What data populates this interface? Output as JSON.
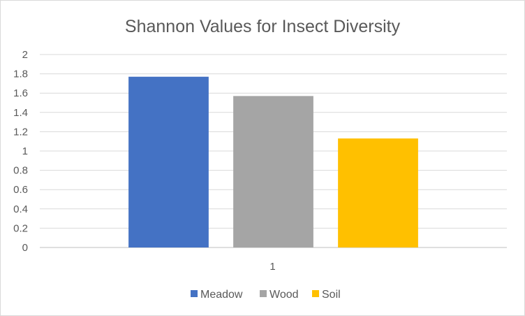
{
  "chart_data": {
    "type": "bar",
    "title": "Shannon Values for Insect Diversity",
    "categories": [
      "1"
    ],
    "series": [
      {
        "name": "Meadow",
        "values": [
          1.77
        ],
        "color": "#4472c4"
      },
      {
        "name": "Wood",
        "values": [
          1.57
        ],
        "color": "#a5a5a5"
      },
      {
        "name": "Soil",
        "values": [
          1.13
        ],
        "color": "#ffc000"
      }
    ],
    "xlabel": "",
    "ylabel": "",
    "ylim": [
      0,
      2
    ],
    "yticks": [
      "0",
      "0.2",
      "0.4",
      "0.6",
      "0.8",
      "1",
      "1.2",
      "1.4",
      "1.6",
      "1.8",
      "2"
    ],
    "grid": true,
    "legend_position": "bottom"
  }
}
